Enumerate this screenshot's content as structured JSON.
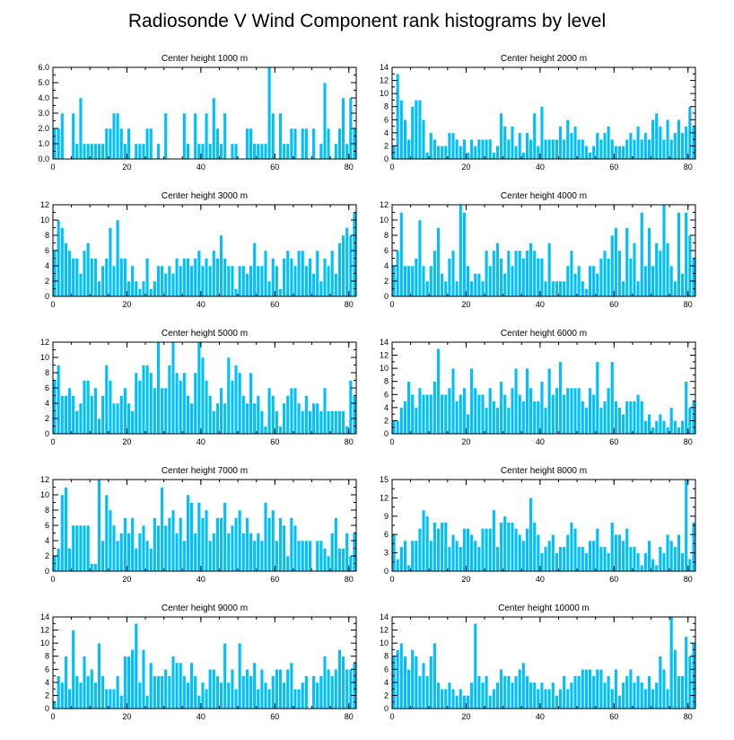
{
  "figure": {
    "title": "Radiosonde V Wind Component rank histograms by level",
    "bar_color": "#00bfff",
    "background": "#ffffff"
  },
  "chart_data": [
    {
      "type": "bar",
      "title": "Center height 1000 m",
      "xlim": [
        0,
        82
      ],
      "ylim": [
        0,
        6
      ],
      "x_ticks": [
        0,
        20,
        40,
        60,
        80
      ],
      "y_ticks": [
        0,
        1,
        2,
        3,
        4,
        5,
        6
      ],
      "y_tick_labels": [
        "0.0",
        "1.0",
        "2.0",
        "3.0",
        "4.0",
        "5.0",
        "6.0"
      ],
      "values": [
        2,
        2,
        3,
        0,
        0,
        3,
        1,
        4,
        1,
        1,
        1,
        1,
        1,
        1,
        2,
        2,
        3,
        3,
        2,
        1,
        2,
        0,
        1,
        1,
        1,
        2,
        2,
        0,
        1,
        0,
        3,
        0,
        0,
        0,
        0,
        3,
        1,
        0,
        3,
        1,
        1,
        3,
        1,
        4,
        2,
        1,
        3,
        0,
        1,
        1,
        0,
        0,
        2,
        2,
        1,
        1,
        1,
        1,
        6,
        3,
        0,
        3,
        1,
        1,
        2,
        2,
        0,
        2,
        2,
        0,
        2,
        0,
        1,
        5,
        2,
        0,
        1,
        2,
        4,
        1,
        4,
        2
      ]
    },
    {
      "type": "bar",
      "title": "Center height 2000 m",
      "xlim": [
        0,
        82
      ],
      "ylim": [
        0,
        14
      ],
      "x_ticks": [
        0,
        20,
        40,
        60,
        80
      ],
      "y_ticks": [
        0,
        2,
        4,
        6,
        8,
        10,
        12,
        14
      ],
      "y_tick_labels": [
        "0",
        "2",
        "4",
        "6",
        "8",
        "10",
        "12",
        "14"
      ],
      "values": [
        2,
        13,
        9,
        6,
        3,
        8,
        9,
        9,
        6,
        1,
        4,
        3,
        2,
        2,
        2,
        4,
        4,
        3,
        2,
        3,
        1,
        3,
        2,
        3,
        3,
        3,
        3,
        1,
        2,
        7,
        5,
        3,
        5,
        2,
        4,
        1,
        4,
        3,
        7,
        2,
        8,
        3,
        3,
        3,
        3,
        5,
        3,
        6,
        4,
        5,
        3,
        3,
        2,
        1,
        2,
        4,
        3,
        4,
        5,
        3,
        2,
        2,
        2,
        3,
        4,
        3,
        5,
        3,
        4,
        3,
        6,
        7,
        5,
        3,
        6,
        3,
        4,
        6,
        4,
        5,
        8,
        5
      ]
    },
    {
      "type": "bar",
      "title": "Center height 3000 m",
      "xlim": [
        0,
        82
      ],
      "ylim": [
        0,
        12
      ],
      "x_ticks": [
        0,
        20,
        40,
        60,
        80
      ],
      "y_ticks": [
        0,
        2,
        4,
        6,
        8,
        10,
        12
      ],
      "y_tick_labels": [
        "0",
        "2",
        "4",
        "6",
        "8",
        "10",
        "12"
      ],
      "values": [
        6,
        10,
        9,
        7,
        6,
        5,
        5,
        3,
        6,
        7,
        5,
        5,
        2,
        4,
        5,
        9,
        4,
        10,
        5,
        5,
        2,
        4,
        2,
        1,
        2,
        5,
        1,
        2,
        4,
        4,
        3,
        4,
        3,
        5,
        4,
        5,
        5,
        4,
        5,
        6,
        4,
        5,
        4,
        6,
        5,
        8,
        5,
        4,
        4,
        1,
        4,
        4,
        3,
        4,
        7,
        4,
        4,
        6,
        2,
        5,
        4,
        1,
        5,
        6,
        5,
        4,
        6,
        6,
        4,
        5,
        3,
        6,
        2,
        5,
        4,
        6,
        3,
        7,
        8,
        9,
        8,
        11
      ]
    },
    {
      "type": "bar",
      "title": "Center height 4000 m",
      "xlim": [
        0,
        82
      ],
      "ylim": [
        0,
        12
      ],
      "x_ticks": [
        0,
        20,
        40,
        60,
        80
      ],
      "y_ticks": [
        0,
        2,
        4,
        6,
        8,
        10,
        12
      ],
      "y_tick_labels": [
        "0",
        "2",
        "4",
        "6",
        "8",
        "10",
        "12"
      ],
      "values": [
        4,
        6,
        11,
        4,
        4,
        4,
        5,
        10,
        4,
        2,
        4,
        6,
        9,
        3,
        2,
        5,
        6,
        2,
        12,
        11,
        4,
        2,
        3,
        3,
        2,
        6,
        4,
        6,
        7,
        5,
        3,
        6,
        4,
        6,
        6,
        5,
        6,
        7,
        6,
        5,
        5,
        2,
        7,
        2,
        2,
        2,
        2,
        4,
        6,
        3,
        4,
        2,
        1,
        4,
        4,
        3,
        5,
        6,
        5,
        8,
        9,
        6,
        2,
        9,
        5,
        7,
        2,
        11,
        4,
        9,
        4,
        7,
        6,
        12,
        7,
        4,
        2,
        11,
        3,
        11,
        8,
        5
      ]
    },
    {
      "type": "bar",
      "title": "Center height 5000 m",
      "xlim": [
        0,
        82
      ],
      "ylim": [
        0,
        12
      ],
      "x_ticks": [
        0,
        20,
        40,
        60,
        80
      ],
      "y_ticks": [
        0,
        2,
        4,
        6,
        8,
        10,
        12
      ],
      "y_tick_labels": [
        "0",
        "2",
        "4",
        "6",
        "8",
        "10",
        "12"
      ],
      "values": [
        7,
        9,
        5,
        5,
        6,
        5,
        3,
        4,
        7,
        7,
        5,
        6,
        2,
        5,
        9,
        7,
        4,
        4,
        5,
        6,
        4,
        3,
        8,
        7,
        9,
        9,
        8,
        6,
        12,
        6,
        6,
        9,
        12,
        8,
        7,
        8,
        5,
        4,
        8,
        12,
        10,
        7,
        5,
        3,
        4,
        6,
        4,
        10,
        7,
        9,
        8,
        5,
        4,
        8,
        4,
        5,
        3,
        1,
        6,
        5,
        3,
        1,
        4,
        5,
        6,
        6,
        4,
        3,
        5,
        3,
        4,
        4,
        3,
        6,
        3,
        3,
        3,
        3,
        3,
        1,
        7,
        5
      ]
    },
    {
      "type": "bar",
      "title": "Center height 6000 m",
      "xlim": [
        0,
        82
      ],
      "ylim": [
        0,
        14
      ],
      "x_ticks": [
        0,
        20,
        40,
        60,
        80
      ],
      "y_ticks": [
        0,
        2,
        4,
        6,
        8,
        10,
        12,
        14
      ],
      "y_tick_labels": [
        "0",
        "2",
        "4",
        "6",
        "8",
        "10",
        "12",
        "14"
      ],
      "values": [
        2,
        2,
        4,
        5,
        8,
        6,
        4,
        7,
        6,
        6,
        6,
        8,
        13,
        6,
        6,
        7,
        10,
        5,
        6,
        7,
        3,
        10,
        7,
        6,
        6,
        4,
        7,
        5,
        4,
        8,
        6,
        4,
        7,
        10,
        6,
        5,
        10,
        7,
        5,
        5,
        8,
        4,
        10,
        6,
        7,
        11,
        6,
        7,
        7,
        7,
        7,
        5,
        4,
        7,
        6,
        11,
        4,
        5,
        7,
        11,
        5,
        4,
        3,
        5,
        5,
        5,
        6,
        5,
        2,
        3,
        1,
        2,
        3,
        2,
        1,
        4,
        2,
        1,
        2,
        8,
        4,
        5
      ]
    },
    {
      "type": "bar",
      "title": "Center height 7000 m",
      "xlim": [
        0,
        82
      ],
      "ylim": [
        0,
        12
      ],
      "x_ticks": [
        0,
        20,
        40,
        60,
        80
      ],
      "y_ticks": [
        0,
        2,
        4,
        6,
        8,
        10,
        12
      ],
      "y_tick_labels": [
        "0",
        "2",
        "4",
        "6",
        "8",
        "10",
        "12"
      ],
      "values": [
        2,
        3,
        10,
        11,
        3,
        6,
        6,
        6,
        6,
        6,
        1,
        1,
        12,
        4,
        10,
        8,
        6,
        4,
        5,
        7,
        5,
        7,
        3,
        5,
        6,
        4,
        3,
        7,
        6,
        11,
        6,
        7,
        8,
        5,
        7,
        4,
        10,
        9,
        5,
        9,
        7,
        8,
        4,
        5,
        7,
        7,
        9,
        5,
        6,
        7,
        8,
        5,
        7,
        5,
        4,
        5,
        4,
        9,
        7,
        8,
        4,
        7,
        6,
        2,
        7,
        6,
        4,
        4,
        4,
        4,
        0,
        4,
        4,
        3,
        2,
        5,
        7,
        3,
        3,
        5,
        2,
        5
      ]
    },
    {
      "type": "bar",
      "title": "Center height 8000 m",
      "xlim": [
        0,
        82
      ],
      "ylim": [
        0,
        15
      ],
      "x_ticks": [
        0,
        20,
        40,
        60,
        80
      ],
      "y_ticks": [
        0,
        3,
        6,
        9,
        12,
        15
      ],
      "y_tick_labels": [
        "0",
        "3",
        "6",
        "9",
        "12",
        "15"
      ],
      "values": [
        6,
        2,
        4,
        5,
        1,
        5,
        5,
        7,
        10,
        9,
        5,
        8,
        7,
        8,
        8,
        4,
        6,
        5,
        4,
        7,
        7,
        6,
        5,
        4,
        7,
        7,
        7,
        10,
        4,
        8,
        9,
        8,
        8,
        7,
        6,
        5,
        7,
        12,
        8,
        6,
        3,
        4,
        5,
        6,
        3,
        4,
        4,
        6,
        8,
        7,
        4,
        4,
        3,
        5,
        5,
        7,
        4,
        4,
        3,
        8,
        6,
        6,
        5,
        7,
        4,
        4,
        3,
        1,
        3,
        5,
        2,
        1,
        4,
        3,
        6,
        5,
        4,
        6,
        3,
        15,
        2,
        8
      ]
    },
    {
      "type": "bar",
      "title": "Center height 9000 m",
      "xlim": [
        0,
        82
      ],
      "ylim": [
        0,
        14
      ],
      "x_ticks": [
        0,
        20,
        40,
        60,
        80
      ],
      "y_ticks": [
        0,
        2,
        4,
        6,
        8,
        10,
        12,
        14
      ],
      "y_tick_labels": [
        "0",
        "2",
        "4",
        "6",
        "8",
        "10",
        "12",
        "14"
      ],
      "values": [
        1,
        5,
        4,
        8,
        3,
        12,
        5,
        4,
        8,
        5,
        6,
        4,
        10,
        5,
        3,
        3,
        3,
        5,
        2,
        8,
        8,
        9,
        13,
        4,
        9,
        2,
        7,
        5,
        5,
        5,
        6,
        5,
        8,
        7,
        7,
        5,
        4,
        7,
        5,
        2,
        4,
        3,
        6,
        6,
        5,
        4,
        10,
        4,
        6,
        3,
        10,
        5,
        6,
        5,
        7,
        3,
        6,
        4,
        3,
        5,
        6,
        6,
        4,
        6,
        7,
        3,
        3,
        4,
        5,
        0,
        5,
        4,
        5,
        8,
        6,
        5,
        6,
        9,
        8,
        6,
        6,
        7
      ]
    },
    {
      "type": "bar",
      "title": "Center height 10000 m",
      "xlim": [
        0,
        82
      ],
      "ylim": [
        0,
        14
      ],
      "x_ticks": [
        0,
        20,
        40,
        60,
        80
      ],
      "y_ticks": [
        0,
        2,
        4,
        6,
        8,
        10,
        12,
        14
      ],
      "y_tick_labels": [
        "0",
        "2",
        "4",
        "6",
        "8",
        "10",
        "12",
        "14"
      ],
      "values": [
        8,
        9,
        10,
        8,
        6,
        9,
        8,
        5,
        7,
        5,
        8,
        10,
        4,
        3,
        3,
        4,
        3,
        2,
        3,
        2,
        2,
        4,
        13,
        5,
        4,
        5,
        2,
        3,
        4,
        6,
        5,
        5,
        4,
        5,
        6,
        7,
        5,
        4,
        4,
        3,
        4,
        3,
        3,
        4,
        2,
        3,
        5,
        3,
        4,
        5,
        5,
        6,
        6,
        6,
        5,
        6,
        6,
        4,
        5,
        3,
        6,
        2,
        4,
        5,
        6,
        4,
        5,
        4,
        3,
        5,
        3,
        4,
        8,
        6,
        3,
        14,
        9,
        5,
        5,
        11,
        8,
        10
      ]
    }
  ]
}
